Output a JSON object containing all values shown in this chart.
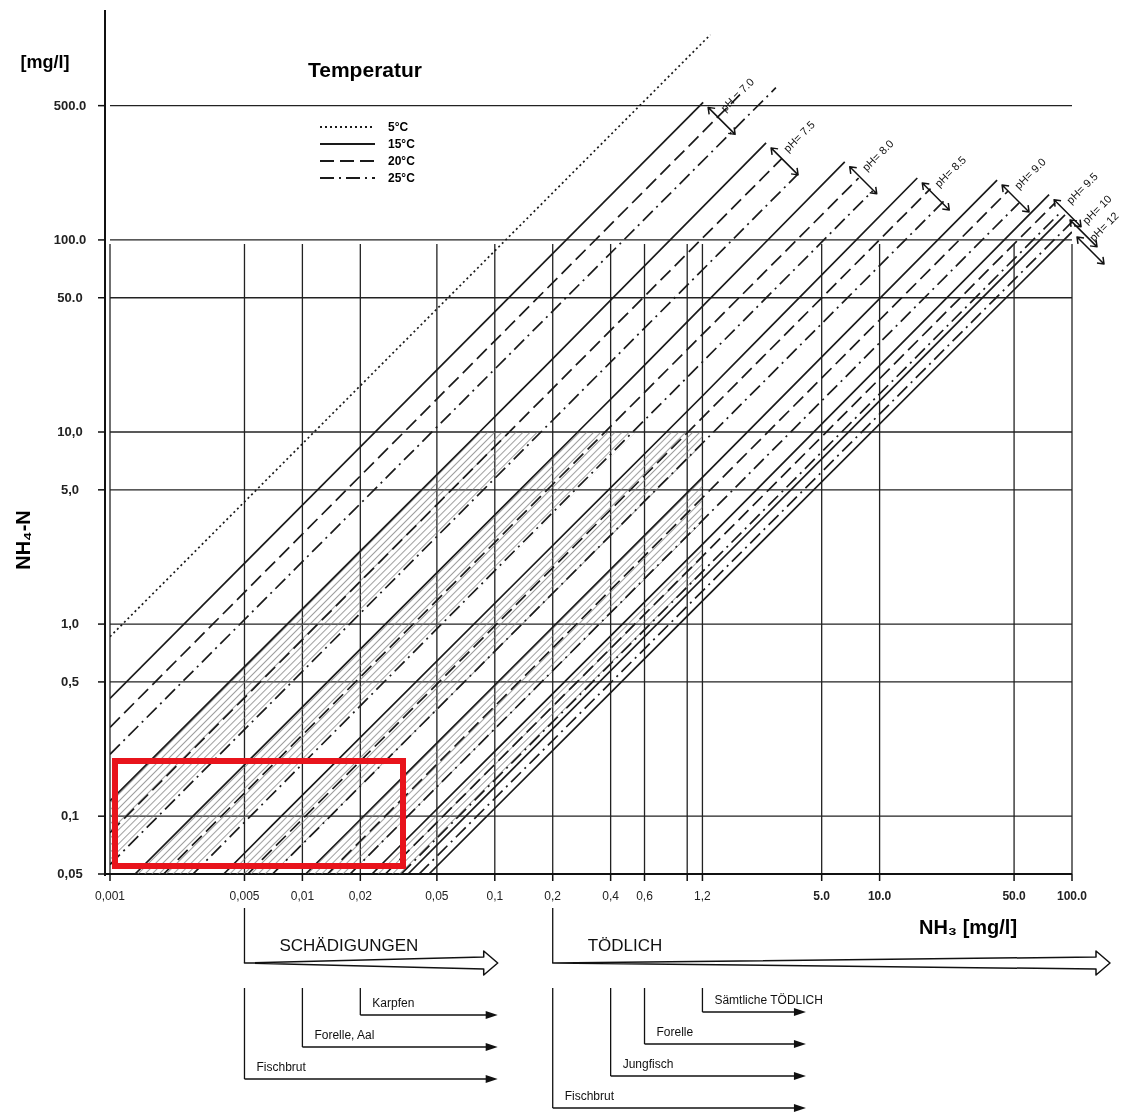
{
  "chart_data": {
    "type": "line",
    "ylabel": "NH₄-N",
    "xlabel": "NH₃ [mg/l]",
    "legend_title": "Temperatur",
    "legend": "top left",
    "grid": true,
    "log": "xy",
    "xlim": [
      0.001,
      100
    ],
    "ylim": [
      0.05,
      1500
    ],
    "xticks": [
      {
        "value": 0.001,
        "label": "0,001"
      },
      {
        "value": 0.005,
        "label": "0,005"
      },
      {
        "value": 0.01,
        "label": "0,01"
      },
      {
        "value": 0.02,
        "label": "0,02"
      },
      {
        "value": 0.05,
        "label": "0,05"
      },
      {
        "value": 0.1,
        "label": "0,1"
      },
      {
        "value": 0.2,
        "label": "0,2"
      },
      {
        "value": 0.4,
        "label": "0,4"
      },
      {
        "value": 0.6,
        "label": "0,6"
      },
      {
        "value": 1,
        "label": null
      },
      {
        "value": 1.2,
        "label": "1,2"
      },
      {
        "value": 5,
        "label": "5.0"
      },
      {
        "value": 10,
        "label": "10.0"
      },
      {
        "value": 50,
        "label": "50.0"
      },
      {
        "value": 100,
        "label": "100.0"
      }
    ],
    "yticks": [
      {
        "value": 0.05,
        "label": "0,05"
      },
      {
        "value": 0.1,
        "label": "0,1"
      },
      {
        "value": 0.5,
        "label": "0,5"
      },
      {
        "value": 1,
        "label": "1,0"
      },
      {
        "value": 5,
        "label": "5,0"
      },
      {
        "value": 10,
        "label": "10,0"
      },
      {
        "value": 50,
        "label": "50.0"
      },
      {
        "value": 100,
        "label": "100.0"
      },
      {
        "value": 500,
        "label": "500.0"
      }
    ],
    "series": [
      {
        "name": "5°C",
        "color": "#1a1a1a",
        "line_style": "dotted",
        "x": [
          0.001,
          1.32
        ],
        "values": [
          0.86,
          1170
        ]
      },
      {
        "name": "15°C",
        "color": "#1a1a1a",
        "line_style": "solid",
        "x": [
          0.001,
          1.21
        ],
        "values": [
          0.41,
          520
        ]
      },
      {
        "name": "20°C",
        "color": "#1a1a1a",
        "line_style": "dashed",
        "x": [
          0.001,
          1.88
        ],
        "values": [
          0.29,
          570
        ]
      },
      {
        "name": "25°C",
        "color": "#1a1a1a",
        "line_style": "dashdot",
        "x": [
          0.001,
          2.89
        ],
        "values": [
          0.21,
          620
        ]
      },
      {
        "color": "#1a1a1a",
        "line_style": "solid",
        "x": [
          0.001,
          0.0833,
          0.179,
          2.57
        ],
        "values": [
          0.12,
          10,
          21.5,
          320
        ],
        "upper": [
          0.12,
          10,
          10,
          null
        ],
        "lower": [
          0.056,
          4.67,
          10,
          null
        ]
      },
      {
        "color": "#1a1a1a",
        "line_style": "dashed",
        "x": [
          0.001,
          3.1
        ],
        "values": [
          0.082,
          265
        ]
      },
      {
        "color": "#1a1a1a",
        "line_style": "dashdot",
        "x": [
          0.001,
          3.76
        ],
        "values": [
          0.056,
          220
        ]
      },
      {
        "color": "#1a1a1a",
        "line_style": "solid",
        "x": [
          0.00135,
          0.0027,
          0.27,
          0.54,
          6.59
        ],
        "values": [
          0.05,
          0.1,
          10,
          20,
          255
        ],
        "upper": [
          0.05,
          0.1,
          10,
          10,
          null
        ],
        "lower": [
          0.05,
          0.05,
          5,
          10,
          null
        ]
      },
      {
        "color": "#1a1a1a",
        "line_style": "dashed",
        "x": [
          0.0019,
          7.78
        ],
        "values": [
          0.05,
          210
        ]
      },
      {
        "color": "#1a1a1a",
        "line_style": "dashdot",
        "x": [
          0.0027,
          9.2
        ],
        "values": [
          0.05,
          180
        ]
      },
      {
        "color": "#1a1a1a",
        "line_style": "solid",
        "x": [
          0.0039,
          0.007,
          0.78,
          1.2,
          15.7
        ],
        "values": [
          0.05,
          0.09,
          10,
          15.4,
          210
        ],
        "upper": [
          0.05,
          0.09,
          10,
          10,
          null
        ],
        "lower": [
          0.05,
          0.05,
          5.5,
          8.5,
          null
        ]
      },
      {
        "color": "#1a1a1a",
        "line_style": "dashed",
        "x": [
          0.0052,
          18.4
        ],
        "values": [
          0.05,
          185
        ]
      },
      {
        "color": "#1a1a1a",
        "line_style": "dashdot",
        "x": [
          0.007,
          21.7
        ],
        "values": [
          0.05,
          160
        ]
      },
      {
        "color": "#1a1a1a",
        "line_style": "solid",
        "x": [
          0.0104,
          0.0177,
          1.2,
          40.8
        ],
        "values": [
          0.05,
          0.085,
          5.8,
          205
        ],
        "upper": [
          0.05,
          0.085,
          5.8,
          null
        ],
        "lower": [
          0.05,
          0.05,
          3.4,
          null
        ]
      },
      {
        "color": "#1a1a1a",
        "line_style": "dashed",
        "x": [
          0.0135,
          46.6
        ],
        "values": [
          0.05,
          180
        ]
      },
      {
        "color": "#1a1a1a",
        "line_style": "dashdot",
        "x": [
          0.0177,
          53.1
        ],
        "values": [
          0.05,
          156
        ]
      },
      {
        "color": "#1a1a1a",
        "line_style": "solid",
        "x": [
          0.023,
          0.0326,
          1.2,
          76
        ],
        "values": [
          0.05,
          0.071,
          2.6,
          172
        ],
        "upper": [
          0.05,
          0.071,
          2.6,
          null
        ],
        "lower": [
          0.05,
          0.05,
          1.84,
          null
        ]
      },
      {
        "color": "#1a1a1a",
        "line_style": "dashed",
        "x": [
          0.027,
          81.7
        ],
        "values": [
          0.05,
          156
        ]
      },
      {
        "color": "#1a1a1a",
        "line_style": "dashdot",
        "x": [
          0.0326,
          87.7
        ],
        "values": [
          0.05,
          140
        ]
      },
      {
        "color": "#1a1a1a",
        "line_style": "solid",
        "x": [
          0.0354,
          92
        ],
        "values": [
          0.05,
          135
        ]
      },
      {
        "color": "#1a1a1a",
        "line_style": "dashdot",
        "x": [
          0.0404,
          100
        ],
        "values": [
          0.05,
          124
        ]
      },
      {
        "color": "#1a1a1a",
        "line_style": "solid",
        "x": [
          0.0455,
          100
        ],
        "values": [
          0.05,
          110
        ]
      }
    ],
    "annotations": [
      "[mg/l]",
      "SCHÄDIGUNGEN",
      "TÖDLICH",
      {
        "text": "pH = 7.0",
        "x": 1.21,
        "y": 520
      },
      {
        "text": "pH= 7.5",
        "x": 2.57,
        "y": 320
      },
      {
        "text": "pH= 8.0",
        "x": 6.59,
        "y": 255
      },
      {
        "text": "pH= 8.5",
        "x": 15.7,
        "y": 210
      },
      {
        "text": "pH= 9.0",
        "x": 40.8,
        "y": 205
      },
      {
        "text": "pH= 9.5",
        "x": 76,
        "y": 172
      },
      {
        "text": "pH= 10",
        "x": 92,
        "y": 135
      },
      {
        "text": "pH= 12",
        "x": 100,
        "y": 110
      }
    ],
    "ref_lines": [
      {
        "axis": "x",
        "value": 0.02,
        "label": "Karpfen"
      },
      {
        "axis": "x",
        "value": 0.01,
        "label": "Forelle, Aal"
      },
      {
        "axis": "x",
        "value": 0.005,
        "label": "Fischbrut"
      },
      {
        "axis": "x",
        "value": 1.2,
        "label": "Sämtliche TÖDLICH"
      },
      {
        "axis": "x",
        "value": 0.6,
        "label": "Forelle"
      },
      {
        "axis": "x",
        "value": 0.4,
        "label": "Jungfisch"
      },
      {
        "axis": "x",
        "value": 0.2,
        "label": "Fischbrut"
      }
    ]
  }
}
